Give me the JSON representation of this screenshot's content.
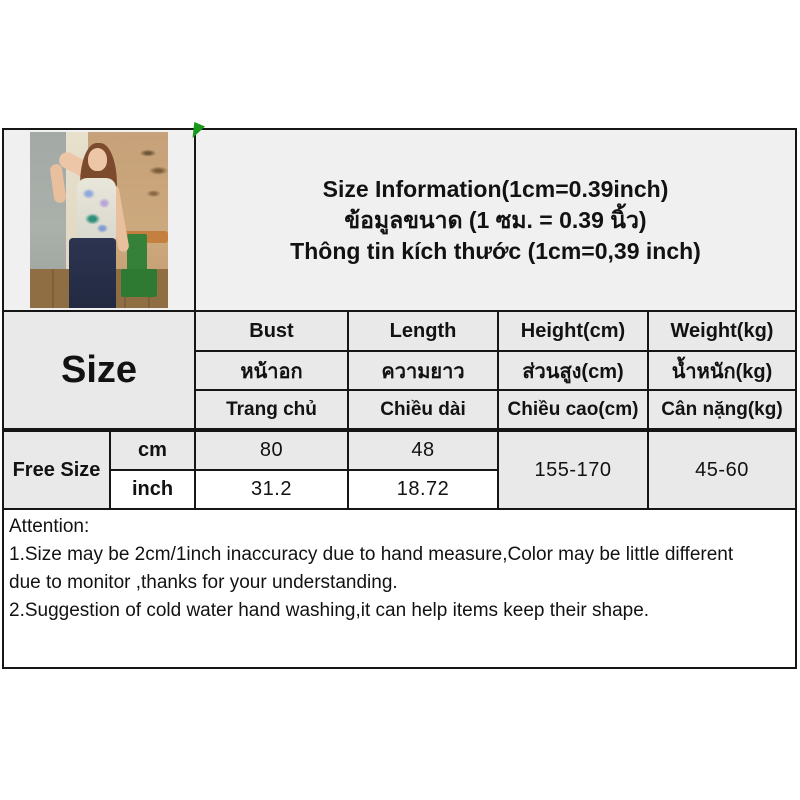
{
  "title": {
    "line_en": "Size Information(1cm=0.39inch)",
    "line_th": "ข้อมูลขนาด (1 ซม. = 0.39 นิ้ว)",
    "line_vi": "Thông tin kích thước (1cm=0,39 inch)"
  },
  "table": {
    "size_label": "Size",
    "headers_en": [
      "Bust",
      "Length",
      "Height(cm)",
      "Weight(kg)"
    ],
    "headers_th": [
      "หน้าอก",
      "ความยาว",
      "ส่วนสูง(cm)",
      "น้ำหนัก(kg)"
    ],
    "headers_vi": [
      "Trang chủ",
      "Chiều dài",
      "Chiều cao(cm)",
      "Cân nặng(kg)"
    ],
    "row_label": "Free Size",
    "unit_cm": "cm",
    "unit_inch": "inch",
    "values_cm": [
      "80",
      "48"
    ],
    "values_inch": [
      "31.2",
      "18.72"
    ],
    "height_range": "155-170",
    "weight_range": "45-60"
  },
  "notes": {
    "heading": "Attention:",
    "line1": "1.Size may be 2cm/1inch inaccuracy due to hand measure,Color may be little different",
    "line2": "due to monitor ,thanks for your understanding.",
    "line3": "2.Suggestion of cold water hand washing,it can help items keep their shape."
  },
  "colors": {
    "cell_gray": "#e9e9e9",
    "row_light": "#f0f0f0",
    "border_black": "#161616",
    "marker_green": "#18981b"
  }
}
